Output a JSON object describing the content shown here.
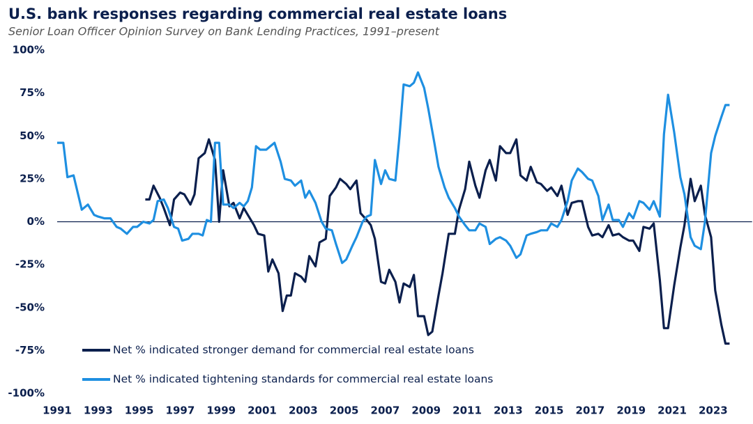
{
  "chart_data": {
    "type": "line",
    "title": "U.S. bank responses regarding commercial real estate loans",
    "subtitle": "Senior Loan Officer Opinion Survey on Bank Lending Practices, 1991–present",
    "legend": "lower left",
    "xlim": [
      1991,
      2024.9
    ],
    "xticks": [
      1991,
      1993,
      1995,
      1997,
      1999,
      2001,
      2003,
      2005,
      2007,
      2009,
      2011,
      2013,
      2015,
      2017,
      2019,
      2021,
      2023
    ],
    "ylim": [
      -100,
      100
    ],
    "yticks": [
      {
        "value": 100,
        "label": "100%"
      },
      {
        "value": 75,
        "label": "75%"
      },
      {
        "value": 50,
        "label": "50%"
      },
      {
        "value": 25,
        "label": "25%"
      },
      {
        "value": 0,
        "label": "0%"
      },
      {
        "value": -25,
        "label": "-25%"
      },
      {
        "value": -50,
        "label": "-50%"
      },
      {
        "value": -75,
        "label": "-75%"
      },
      {
        "value": -100,
        "label": "-100%"
      }
    ],
    "series": [
      {
        "name": "Net % indicated stronger demand for commercial real estate loans",
        "color": "#0b1f4d",
        "x": [
          1995.3,
          1995.5,
          1995.7,
          1996.0,
          1996.2,
          1996.5,
          1996.7,
          1997.0,
          1997.2,
          1997.5,
          1997.7,
          1997.9,
          1998.2,
          1998.4,
          1998.7,
          1998.9,
          1999.1,
          1999.4,
          1999.6,
          1999.9,
          2000.1,
          2000.3,
          2000.6,
          2000.8,
          2001.1,
          2001.3,
          2001.5,
          2001.8,
          2002.0,
          2002.2,
          2002.4,
          2002.6,
          2002.9,
          2003.1,
          2003.3,
          2003.6,
          2003.8,
          2004.1,
          2004.3,
          2004.6,
          2004.8,
          2005.1,
          2005.3,
          2005.6,
          2005.8,
          2006.1,
          2006.3,
          2006.5,
          2006.8,
          2007.0,
          2007.2,
          2007.5,
          2007.7,
          2007.9,
          2008.2,
          2008.4,
          2008.6,
          2008.9,
          2009.1,
          2009.3,
          2009.6,
          2009.8,
          2010.1,
          2010.4,
          2010.6,
          2010.9,
          2011.1,
          2011.4,
          2011.6,
          2011.9,
          2012.1,
          2012.4,
          2012.6,
          2012.9,
          2013.1,
          2013.4,
          2013.6,
          2013.9,
          2014.1,
          2014.4,
          2014.6,
          2014.9,
          2015.1,
          2015.4,
          2015.6,
          2015.9,
          2016.1,
          2016.4,
          2016.6,
          2016.9,
          2017.1,
          2017.4,
          2017.6,
          2017.9,
          2018.1,
          2018.4,
          2018.6,
          2018.9,
          2019.1,
          2019.4,
          2019.6,
          2019.9,
          2020.1,
          2020.4,
          2020.6,
          2020.8,
          2021.1,
          2021.4,
          2021.6,
          2021.9,
          2022.1,
          2022.4,
          2022.6,
          2022.9,
          2023.1,
          2023.4,
          2023.6,
          2023.8
        ],
        "values": [
          13,
          13,
          21,
          14,
          8,
          -2,
          13,
          17,
          16,
          10,
          16,
          37,
          40,
          48,
          36,
          0,
          30,
          9,
          11,
          2,
          8,
          4,
          -2,
          -7,
          -8,
          -29,
          -22,
          -30,
          -52,
          -43,
          -43,
          -30,
          -32,
          -35,
          -20,
          -26,
          -12,
          -10,
          15,
          20,
          25,
          22,
          19,
          24,
          5,
          1,
          -2,
          -10,
          -35,
          -36,
          -28,
          -35,
          -47,
          -36,
          -38,
          -31,
          -55,
          -55,
          -66,
          -64,
          -43,
          -30,
          -7,
          -7,
          7,
          19,
          35,
          21,
          14,
          30,
          36,
          24,
          44,
          40,
          40,
          48,
          27,
          24,
          32,
          23,
          22,
          18,
          20,
          15,
          21,
          4,
          11,
          12,
          12,
          -3,
          -8,
          -7,
          -9,
          -2,
          -8,
          -7,
          -9,
          -11,
          -11,
          -17,
          -3,
          -4,
          -1,
          -34,
          -62,
          -62,
          -37,
          -15,
          -2,
          25,
          12,
          21,
          4,
          -9,
          -40,
          -60,
          -71,
          -71
        ]
      },
      {
        "name": "Net % indicated tightening standards for commercial real estate loans",
        "color": "#1e8fe1",
        "x": [
          1991.0,
          1991.3,
          1991.5,
          1991.8,
          1992.0,
          1992.2,
          1992.5,
          1992.8,
          1993.0,
          1993.3,
          1993.6,
          1993.9,
          1994.1,
          1994.4,
          1994.7,
          1994.9,
          1995.2,
          1995.5,
          1995.7,
          1995.9,
          1996.2,
          1996.4,
          1996.7,
          1996.9,
          1997.1,
          1997.4,
          1997.6,
          1997.9,
          1998.1,
          1998.3,
          1998.5,
          1998.7,
          1998.9,
          1999.1,
          1999.4,
          1999.6,
          1999.9,
          2000.1,
          2000.3,
          2000.5,
          2000.7,
          2000.9,
          2001.2,
          2001.4,
          2001.6,
          2001.9,
          2002.1,
          2002.4,
          2002.6,
          2002.9,
          2003.1,
          2003.3,
          2003.6,
          2003.9,
          2004.1,
          2004.4,
          2004.6,
          2004.9,
          2005.1,
          2005.4,
          2005.6,
          2005.9,
          2006.1,
          2006.3,
          2006.5,
          2006.8,
          2007.0,
          2007.2,
          2007.5,
          2007.7,
          2007.9,
          2008.2,
          2008.4,
          2008.6,
          2008.9,
          2009.1,
          2009.4,
          2009.6,
          2009.9,
          2010.1,
          2010.4,
          2010.6,
          2010.9,
          2011.1,
          2011.4,
          2011.6,
          2011.9,
          2012.1,
          2012.4,
          2012.6,
          2012.9,
          2013.1,
          2013.4,
          2013.6,
          2013.9,
          2014.1,
          2014.4,
          2014.6,
          2014.9,
          2015.1,
          2015.4,
          2015.6,
          2015.9,
          2016.1,
          2016.4,
          2016.6,
          2016.9,
          2017.1,
          2017.4,
          2017.6,
          2017.9,
          2018.1,
          2018.4,
          2018.6,
          2018.9,
          2019.1,
          2019.4,
          2019.6,
          2019.9,
          2020.1,
          2020.4,
          2020.6,
          2020.8,
          2021.1,
          2021.4,
          2021.6,
          2021.9,
          2022.1,
          2022.4,
          2022.6,
          2022.9,
          2023.1,
          2023.4,
          2023.6,
          2023.8
        ],
        "values": [
          46,
          46,
          26,
          27,
          17,
          7,
          10,
          4,
          3,
          2,
          2,
          -3,
          -4,
          -7,
          -3,
          -3,
          0,
          -1,
          1,
          12,
          13,
          8,
          -3,
          -4,
          -11,
          -10,
          -7,
          -7,
          -8,
          1,
          0,
          46,
          46,
          10,
          10,
          8,
          11,
          9,
          12,
          20,
          44,
          42,
          42,
          44,
          46,
          35,
          25,
          24,
          21,
          24,
          14,
          18,
          11,
          0,
          -4,
          -5,
          -13,
          -24,
          -22,
          -14,
          -9,
          0,
          3,
          4,
          36,
          22,
          30,
          25,
          24,
          50,
          80,
          79,
          81,
          87,
          78,
          66,
          46,
          32,
          20,
          14,
          8,
          3,
          -2,
          -5,
          -5,
          -1,
          -3,
          -13,
          -10,
          -9,
          -11,
          -14,
          -21,
          -19,
          -8,
          -7,
          -6,
          -5,
          -5,
          -1,
          -3,
          1,
          12,
          24,
          31,
          29,
          25,
          24,
          15,
          1,
          10,
          1,
          1,
          -3,
          5,
          2,
          12,
          11,
          7,
          12,
          3,
          51,
          74,
          52,
          26,
          16,
          -9,
          -14,
          -16,
          0,
          40,
          50,
          61,
          68,
          68
        ]
      }
    ]
  }
}
